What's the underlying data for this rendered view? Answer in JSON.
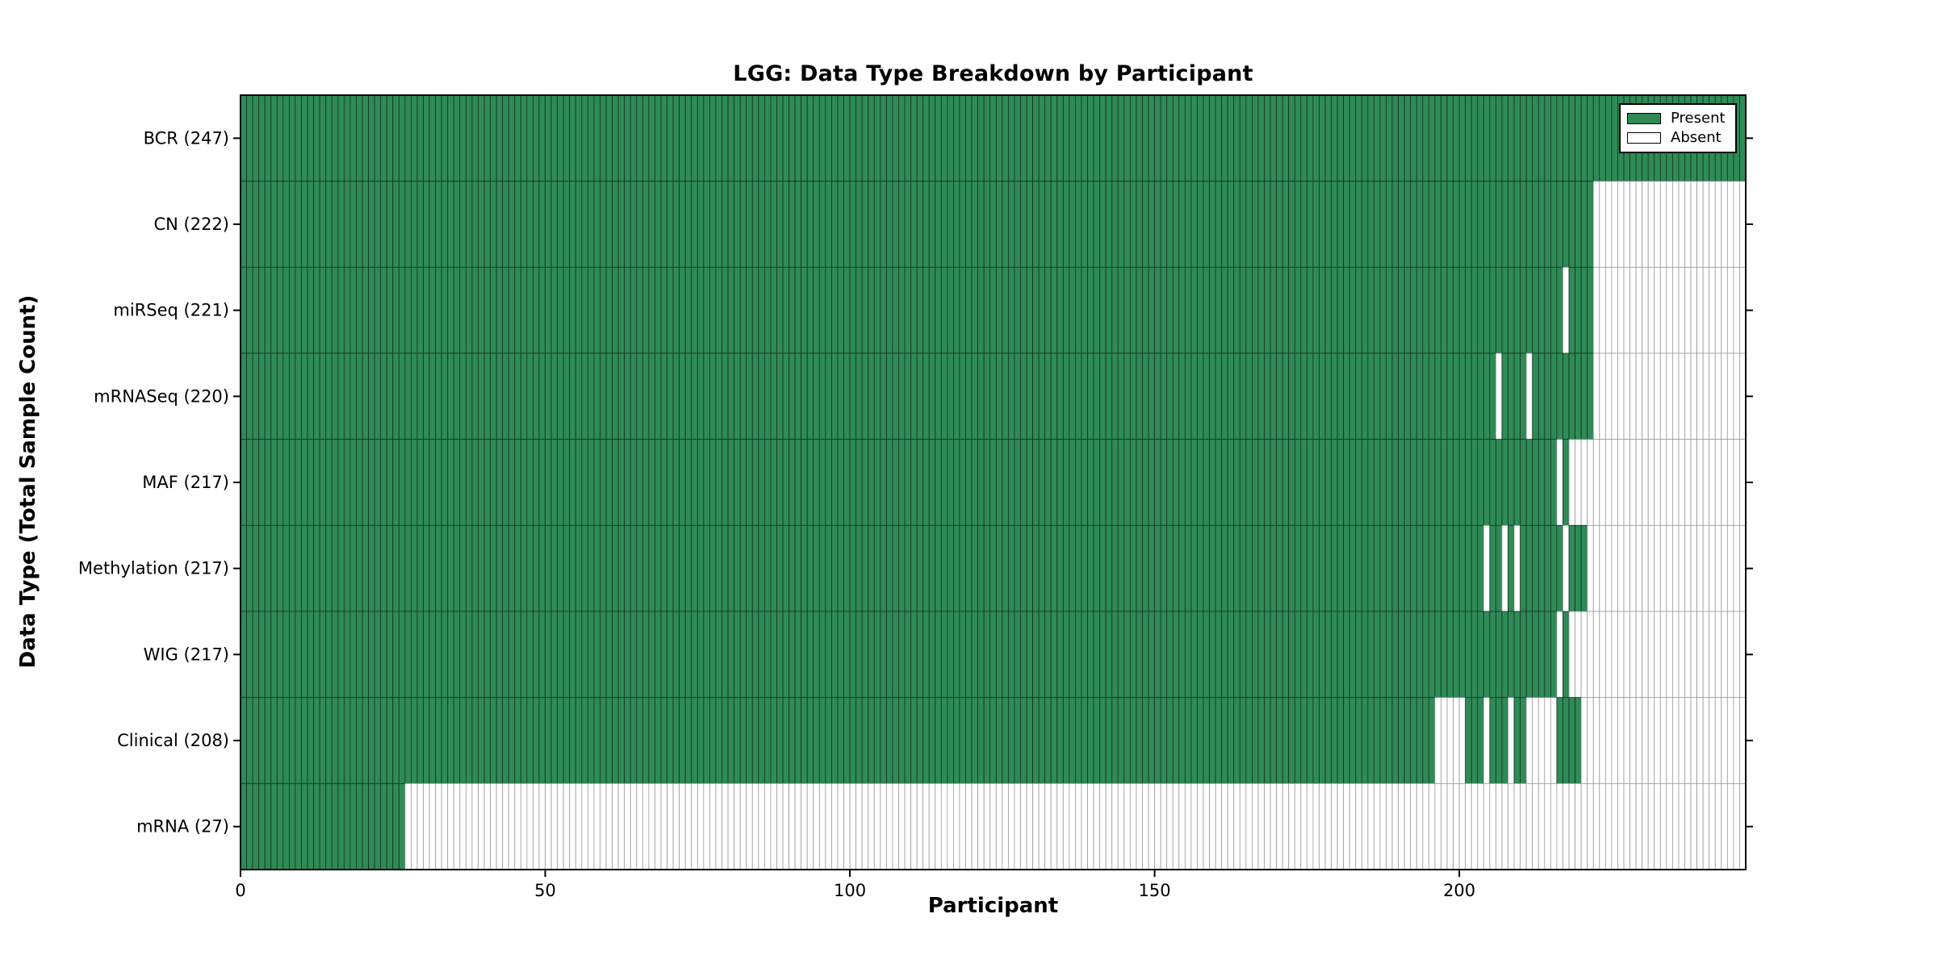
{
  "chart_data": {
    "type": "heatmap",
    "title": "LGG: Data Type Breakdown by Participant",
    "xlabel": "Participant",
    "ylabel": "Data Type (Total Sample Count)",
    "x_ticks": [
      0,
      50,
      100,
      150,
      200
    ],
    "x_range": [
      0,
      247
    ],
    "n_participants": 247,
    "grid": false,
    "legend": {
      "position": "upper-right",
      "entries": [
        {
          "label": "Present",
          "color": "#2e8b57"
        },
        {
          "label": "Absent",
          "color": "#ffffff"
        }
      ]
    },
    "colors": {
      "present_fill": "#2e8b57",
      "absent_fill": "#ffffff",
      "present_edge": "#17301f",
      "absent_edge": "#999999",
      "axis": "#000000"
    },
    "rows": [
      {
        "label": "BCR",
        "total_samples": 247,
        "display": "BCR (247)",
        "present_ranges": [
          [
            0,
            246
          ]
        ]
      },
      {
        "label": "CN",
        "total_samples": 222,
        "display": "CN (222)",
        "present_ranges": [
          [
            0,
            221
          ]
        ]
      },
      {
        "label": "miRSeq",
        "total_samples": 221,
        "display": "miRSeq (221)",
        "present_ranges": [
          [
            0,
            216
          ],
          [
            218,
            221
          ]
        ]
      },
      {
        "label": "mRNASeq",
        "total_samples": 220,
        "display": "mRNASeq (220)",
        "present_ranges": [
          [
            0,
            205
          ],
          [
            207,
            210
          ],
          [
            212,
            221
          ]
        ]
      },
      {
        "label": "MAF",
        "total_samples": 217,
        "display": "MAF (217)",
        "present_ranges": [
          [
            0,
            215
          ],
          [
            217,
            217
          ]
        ]
      },
      {
        "label": "Methylation",
        "total_samples": 217,
        "display": "Methylation (217)",
        "present_ranges": [
          [
            0,
            203
          ],
          [
            205,
            206
          ],
          [
            208,
            208
          ],
          [
            210,
            216
          ],
          [
            218,
            220
          ]
        ]
      },
      {
        "label": "WIG",
        "total_samples": 217,
        "display": "WIG (217)",
        "present_ranges": [
          [
            0,
            215
          ],
          [
            217,
            217
          ]
        ]
      },
      {
        "label": "Clinical",
        "total_samples": 208,
        "display": "Clinical (208)",
        "present_ranges": [
          [
            0,
            195
          ],
          [
            201,
            203
          ],
          [
            205,
            207
          ],
          [
            209,
            210
          ],
          [
            216,
            219
          ]
        ]
      },
      {
        "label": "mRNA",
        "total_samples": 27,
        "display": "mRNA (27)",
        "present_ranges": [
          [
            0,
            26
          ]
        ]
      }
    ]
  }
}
